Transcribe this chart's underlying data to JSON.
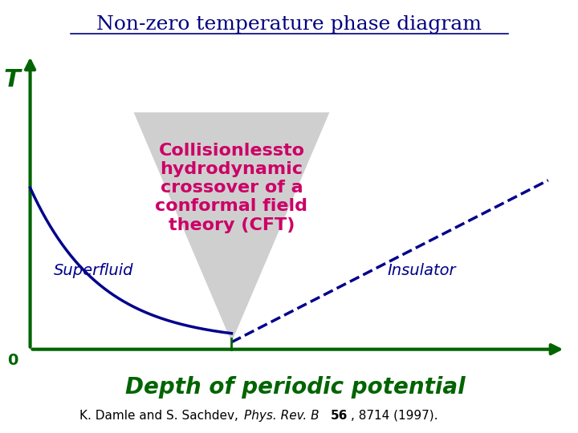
{
  "title": "Non-zero temperature phase diagram",
  "title_color": "#000080",
  "title_fontsize": 18,
  "bg_color": "#ffffff",
  "xlabel": "Depth of periodic potential",
  "xlabel_color": "#006400",
  "xlabel_fontsize": 20,
  "ylabel": "T",
  "ylabel_color": "#006400",
  "ylabel_fontsize": 22,
  "zero_label": "0",
  "zero_color": "#006400",
  "axes_color": "#006400",
  "axes_linewidth": 3.0,
  "superfluid_label": "Superfluid",
  "superfluid_color": "#00008B",
  "superfluid_fontsize": 14,
  "insulator_label": "Insulator",
  "insulator_color": "#00008B",
  "insulator_fontsize": 14,
  "cft_line1": "Collisionlessto",
  "cft_line2": "hydrodynamic",
  "cft_line3": "crossover of a",
  "cft_line4": "conformal field",
  "cft_line5": "theory (CFT)",
  "cft_color": "#CC0066",
  "cft_fontsize": 16,
  "triangle_color": "#C0C0C0",
  "triangle_alpha": 0.75,
  "curve_color": "#00008B",
  "curve_linewidth": 2.5,
  "dashed_color": "#00008B",
  "dashed_linewidth": 2.5,
  "ref_normal1": "K. Damle and S. Sachdev, ",
  "ref_italic": "Phys. Rev. B",
  "ref_bold": "56",
  "ref_normal2": ", 8714 (1997).",
  "ref_color": "#000000",
  "ref_fontsize": 11
}
